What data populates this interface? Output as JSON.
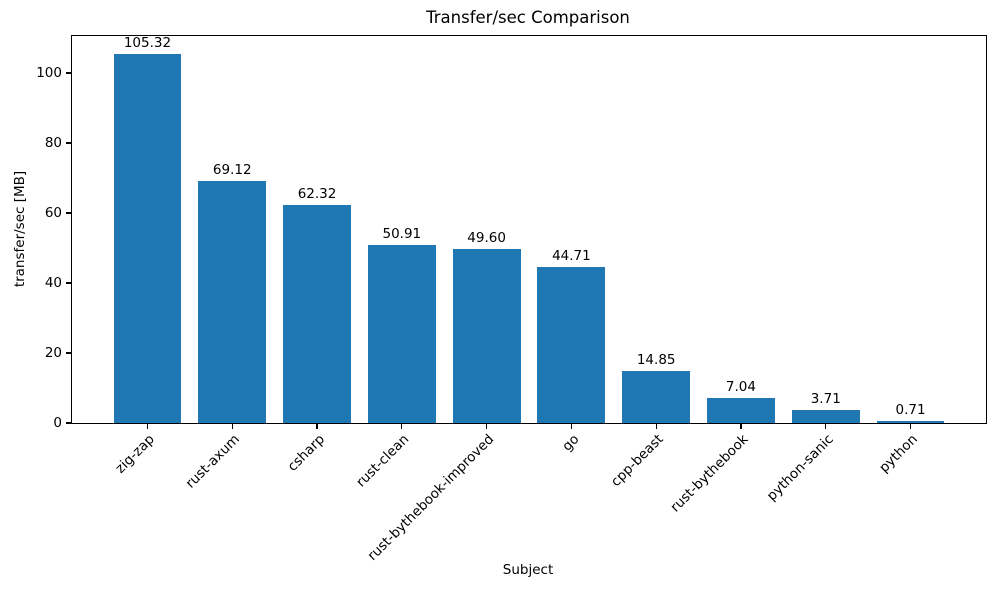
{
  "chart_data": {
    "type": "bar",
    "title": "Transfer/sec Comparison",
    "xlabel": "Subject",
    "ylabel": "transfer/sec [MB]",
    "categories": [
      "zig-zap",
      "rust-axum",
      "csharp",
      "rust-clean",
      "rust-bythebook-improved",
      "go",
      "cpp-beast",
      "rust-bythebook",
      "python-sanic",
      "python"
    ],
    "values": [
      105.32,
      69.12,
      62.32,
      50.91,
      49.6,
      44.71,
      14.85,
      7.04,
      3.71,
      0.71
    ],
    "value_labels": [
      "105.32",
      "69.12",
      "62.32",
      "50.91",
      "49.60",
      "44.71",
      "14.85",
      "7.04",
      "3.71",
      "0.71"
    ],
    "yticks": [
      0,
      20,
      40,
      60,
      80,
      100
    ],
    "ylim": [
      0,
      110.6
    ],
    "bar_color": "#1f77b4",
    "grid": false,
    "legend": "none"
  }
}
